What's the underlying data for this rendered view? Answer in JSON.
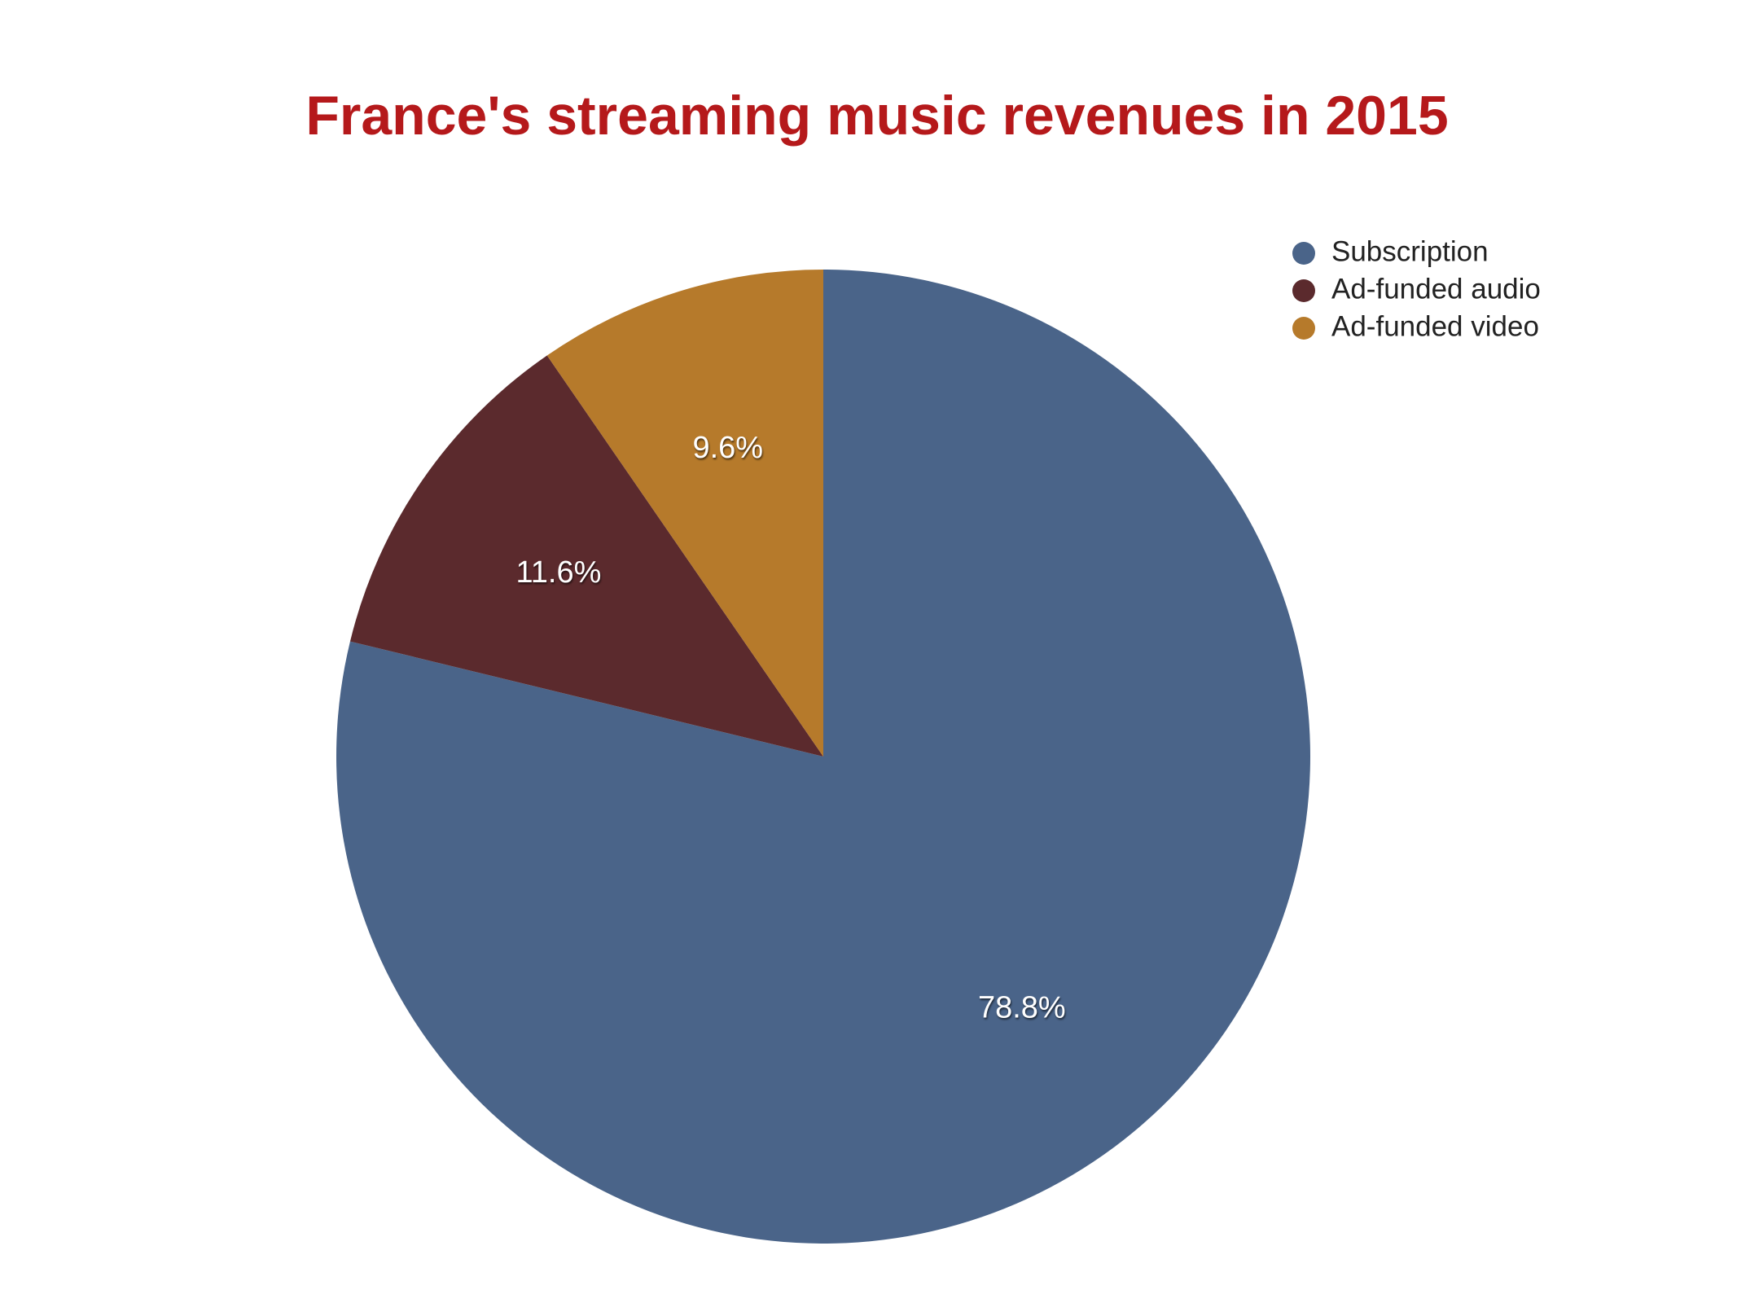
{
  "chart_data": {
    "type": "pie",
    "title": "France's streaming music revenues in 2015",
    "categories": [
      "Subscription",
      "Ad-funded audio",
      "Ad-funded video"
    ],
    "values": [
      78.8,
      11.6,
      9.6
    ],
    "value_labels": [
      "78.8%",
      "11.6%",
      "9.6%"
    ],
    "colors": [
      "#4a6489",
      "#5b2a2d",
      "#b67a2b"
    ],
    "legend": "top-right"
  }
}
